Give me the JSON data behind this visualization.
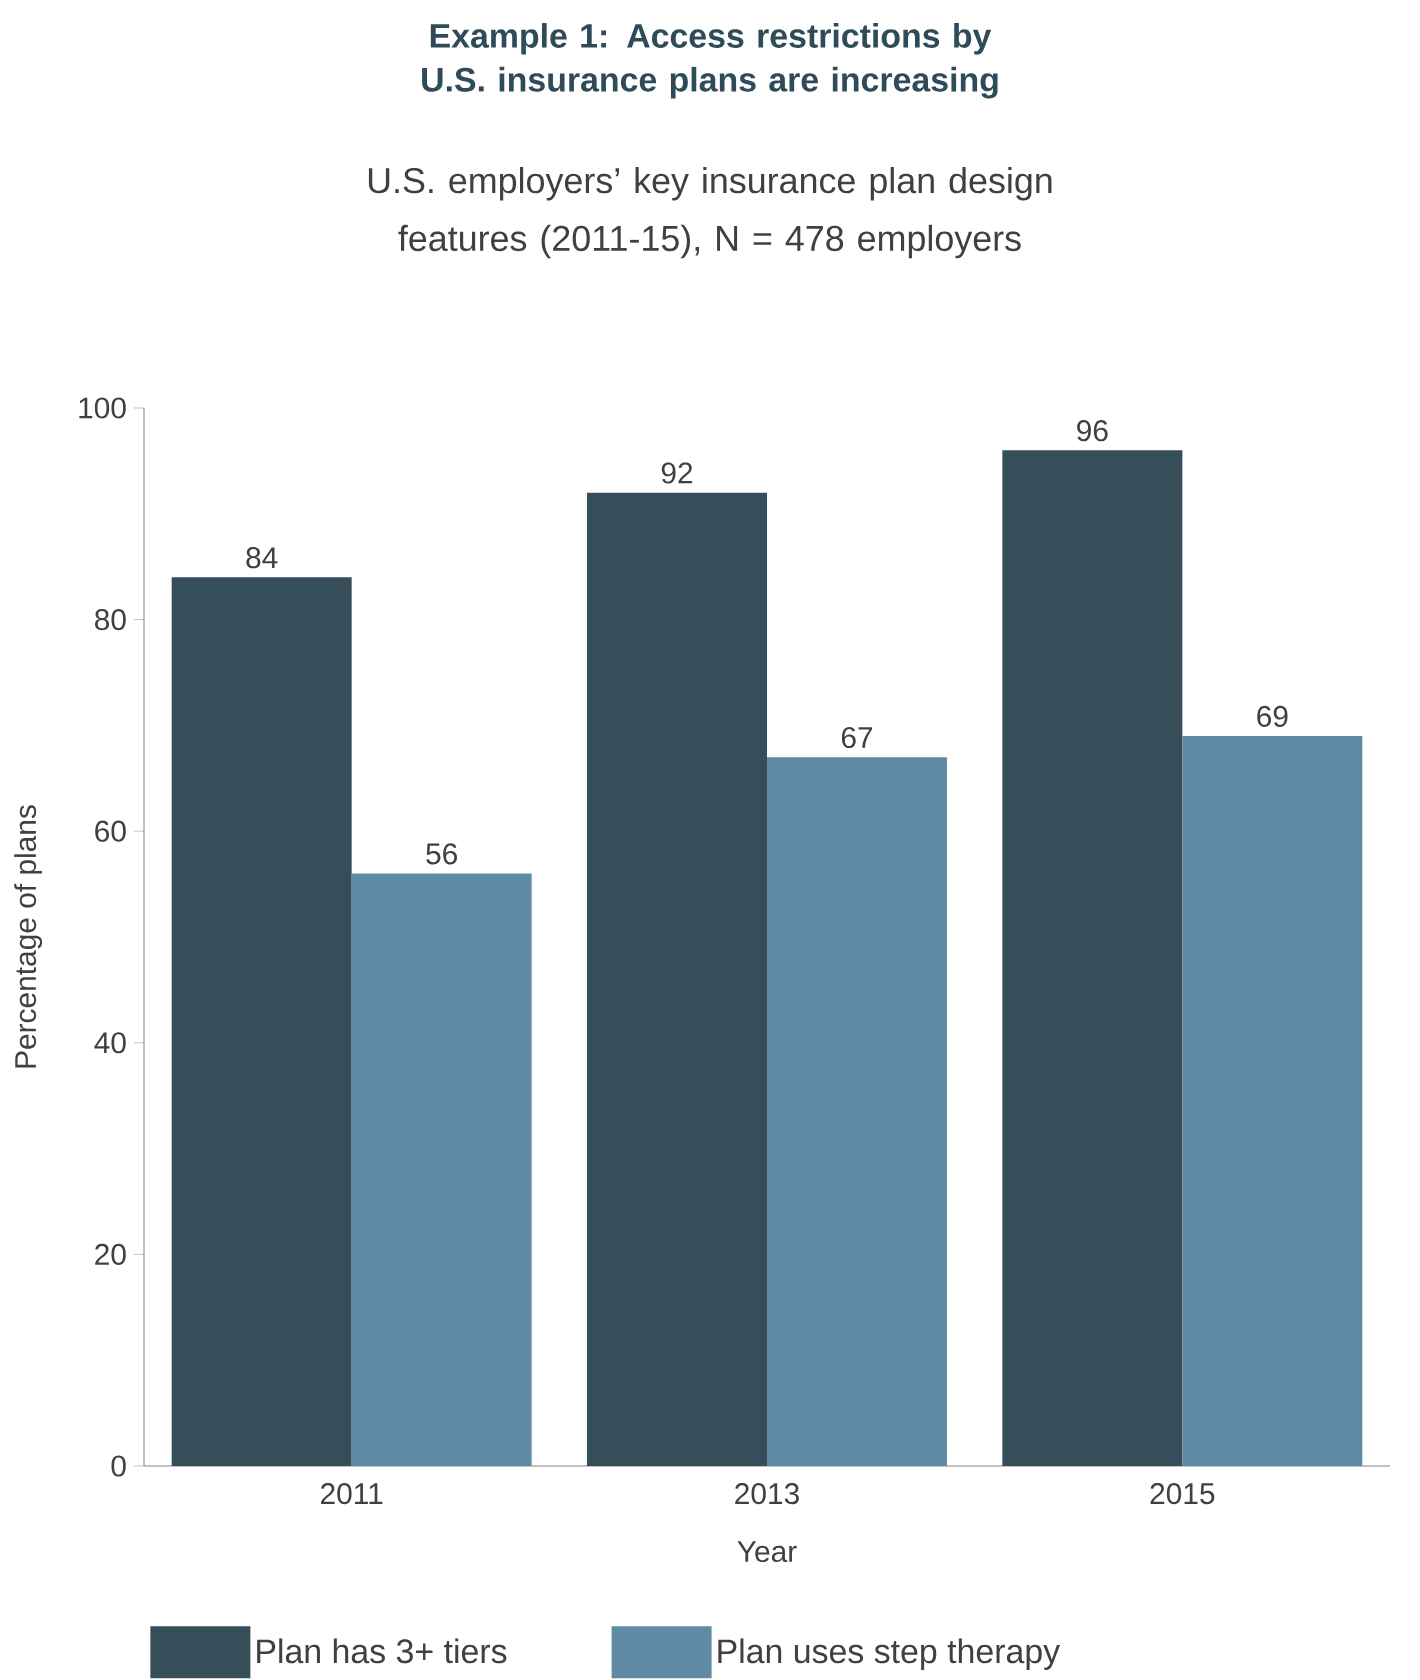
{
  "chart_data": {
    "type": "bar",
    "title": "Example 1: Access restrictions by U.S. insurance plans are increasing",
    "subtitle": "U.S. employers’ key insurance plan design features (2011-15), N = 478 employers",
    "xlabel": "Year",
    "ylabel": "Percentage of plans",
    "categories": [
      "2011",
      "2013",
      "2015"
    ],
    "series": [
      {
        "name": "Plan has 3+ tiers",
        "color": "#364d5a",
        "values": [
          84,
          92,
          96
        ]
      },
      {
        "name": "Plan uses step therapy",
        "color": "#5f8ba5",
        "values": [
          56,
          67,
          69
        ]
      }
    ],
    "ylim": [
      0,
      100
    ],
    "yticks": [
      0,
      20,
      40,
      60,
      80,
      100
    ],
    "data_labels": true,
    "legend": "bottom",
    "grid": false
  }
}
